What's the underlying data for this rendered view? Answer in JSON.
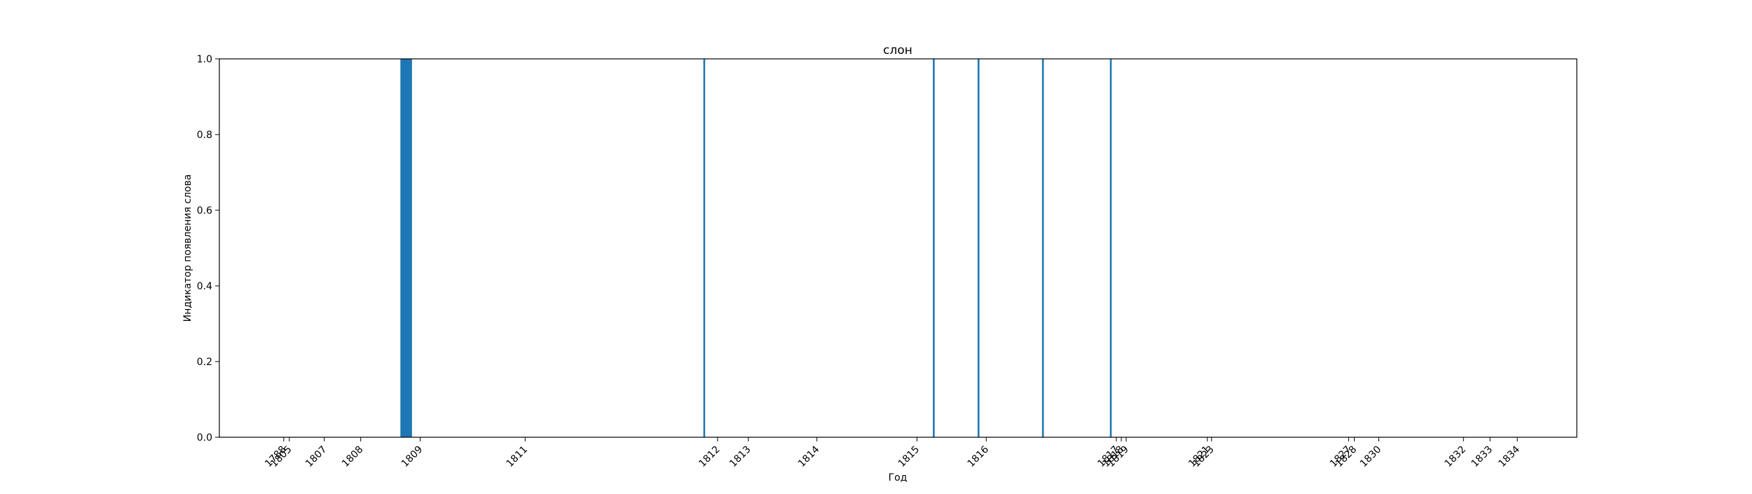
{
  "chart_data": {
    "type": "bar",
    "title": "слон",
    "xlabel": "Год",
    "ylabel": "Индикатор появления слова",
    "ylim": [
      0,
      1
    ],
    "y_ticks": [
      "0.0",
      "0.2",
      "0.4",
      "0.6",
      "0.8",
      "1.0"
    ],
    "x_ticks": [
      {
        "label": "1788",
        "x": 0
      },
      {
        "label": "1805",
        "x": 8
      },
      {
        "label": "1807",
        "x": 58
      },
      {
        "label": "1808",
        "x": 110
      },
      {
        "label": "1809",
        "x": 195
      },
      {
        "label": "1811",
        "x": 345
      },
      {
        "label": "1812",
        "x": 620
      },
      {
        "label": "1813",
        "x": 664
      },
      {
        "label": "1814",
        "x": 762
      },
      {
        "label": "1815",
        "x": 905
      },
      {
        "label": "1816",
        "x": 1004
      },
      {
        "label": "1817",
        "x": 1190
      },
      {
        "label": "1818",
        "x": 1197
      },
      {
        "label": "1819",
        "x": 1204
      },
      {
        "label": "1821",
        "x": 1320
      },
      {
        "label": "1823",
        "x": 1326
      },
      {
        "label": "1827",
        "x": 1522
      },
      {
        "label": "1828",
        "x": 1530
      },
      {
        "label": "1830",
        "x": 1565
      },
      {
        "label": "1832",
        "x": 1686
      },
      {
        "label": "1833",
        "x": 1724
      },
      {
        "label": "1834",
        "x": 1763
      }
    ],
    "xlim": [
      -92,
      1848
    ],
    "series": [
      {
        "values": [
          {
            "x": 168,
            "y": 1
          },
          {
            "x": 170,
            "y": 1
          },
          {
            "x": 172,
            "y": 1
          },
          {
            "x": 174,
            "y": 1
          },
          {
            "x": 176,
            "y": 1
          },
          {
            "x": 177,
            "y": 1
          },
          {
            "x": 178,
            "y": 1
          },
          {
            "x": 179,
            "y": 1
          },
          {
            "x": 180,
            "y": 1
          },
          {
            "x": 182,
            "y": 1
          },
          {
            "x": 601,
            "y": 1
          },
          {
            "x": 929,
            "y": 1
          },
          {
            "x": 993,
            "y": 1
          },
          {
            "x": 1085,
            "y": 1
          },
          {
            "x": 1182,
            "y": 1
          }
        ]
      }
    ],
    "colors": {
      "bar": "#1f77b4",
      "axis": "#000000"
    }
  }
}
